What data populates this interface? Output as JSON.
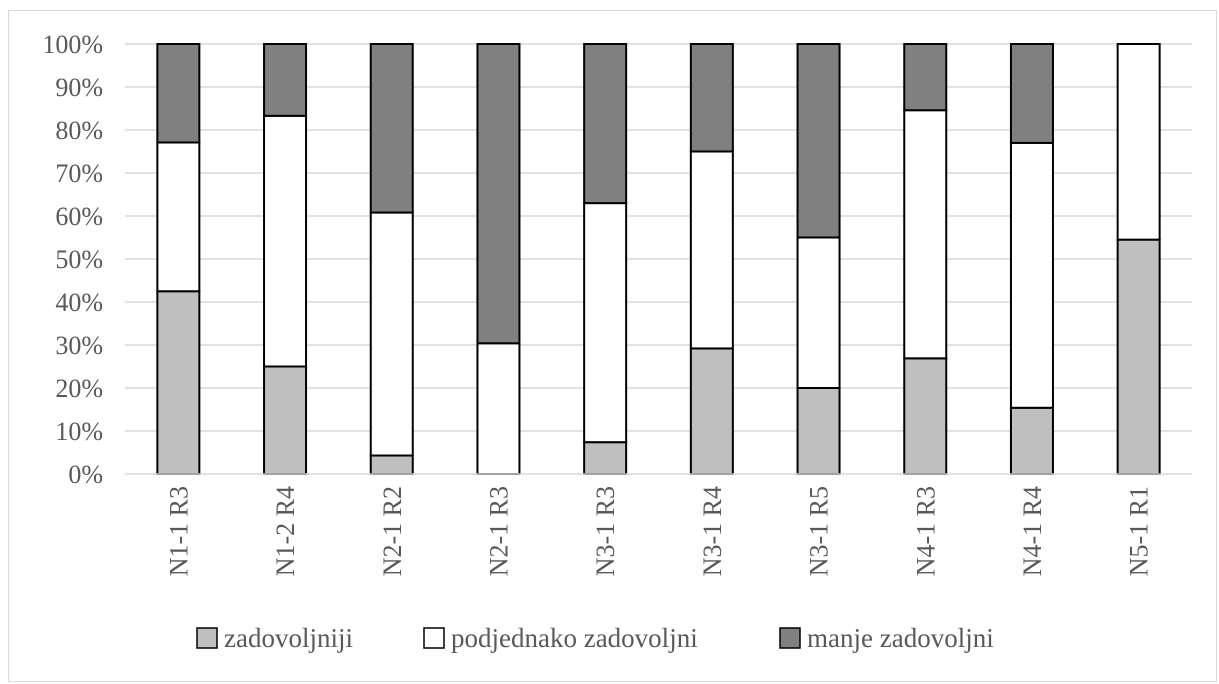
{
  "chart_data": {
    "type": "bar",
    "stacked": true,
    "categories": [
      "N1-1 R3",
      "N1-2 R4",
      "N2-1 R2",
      "N2-1 R3",
      "N3-1 R3",
      "N3-1 R4",
      "N3-1 R5",
      "N4-1 R3",
      "N4-1 R4",
      "N5-1 R1"
    ],
    "series": [
      {
        "name": "zadovoljniji",
        "color": "#bfbfbf",
        "values": [
          42.5,
          25,
          4.3,
          0,
          7.4,
          29.2,
          20,
          26.9,
          15.4,
          54.5
        ]
      },
      {
        "name": "podjednako zadovoljni",
        "color": "#ffffff",
        "values": [
          34.6,
          58.3,
          56.5,
          30.4,
          55.6,
          45.8,
          35,
          57.7,
          61.6,
          45.5
        ]
      },
      {
        "name": "manje zadovoljni",
        "color": "#808080",
        "values": [
          22.9,
          16.7,
          39.2,
          69.6,
          37,
          25,
          45,
          15.4,
          23,
          0
        ]
      }
    ],
    "yticks": [
      "0%",
      "10%",
      "20%",
      "30%",
      "40%",
      "50%",
      "60%",
      "70%",
      "80%",
      "90%",
      "100%"
    ],
    "ylim": [
      0,
      100
    ],
    "grid": true,
    "legend_position": "bottom",
    "xtick_rotation": "vertical"
  }
}
